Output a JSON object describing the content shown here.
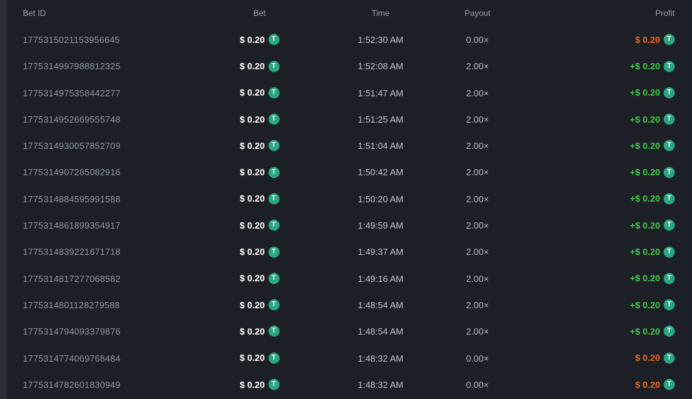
{
  "colors": {
    "table_background": "#1c1f25",
    "page_edge": "#2c2f34",
    "profit_win": "#3fc94a",
    "profit_loss": "#ed6516",
    "tether_green": "#2aa881",
    "bet_amount_text": "#ffffff"
  },
  "icons": {
    "currency": "tether-icon",
    "currency_glyph": "T"
  },
  "table": {
    "columns": [
      {
        "key": "bet_id",
        "label": "Bet ID",
        "align": "left"
      },
      {
        "key": "bet",
        "label": "Bet",
        "align": "center"
      },
      {
        "key": "time",
        "label": "Time",
        "align": "center"
      },
      {
        "key": "payout",
        "label": "Payout",
        "align": "center"
      },
      {
        "key": "profit",
        "label": "Profit",
        "align": "right"
      }
    ],
    "rows": [
      {
        "bet_id": "1775315021153956645",
        "bet": "$ 0.20",
        "time": "1:52:30 AM",
        "payout": "0.00×",
        "profit": "$ 0.20",
        "profit_state": "loss"
      },
      {
        "bet_id": "1775314997988812325",
        "bet": "$ 0.20",
        "time": "1:52:08 AM",
        "payout": "2.00×",
        "profit": "+$ 0.20",
        "profit_state": "win"
      },
      {
        "bet_id": "1775314975358442277",
        "bet": "$ 0.20",
        "time": "1:51:47 AM",
        "payout": "2.00×",
        "profit": "+$ 0.20",
        "profit_state": "win"
      },
      {
        "bet_id": "1775314952669555748",
        "bet": "$ 0.20",
        "time": "1:51:25 AM",
        "payout": "2.00×",
        "profit": "+$ 0.20",
        "profit_state": "win"
      },
      {
        "bet_id": "1775314930057852709",
        "bet": "$ 0.20",
        "time": "1:51:04 AM",
        "payout": "2.00×",
        "profit": "+$ 0.20",
        "profit_state": "win"
      },
      {
        "bet_id": "1775314907285082916",
        "bet": "$ 0.20",
        "time": "1:50:42 AM",
        "payout": "2.00×",
        "profit": "+$ 0.20",
        "profit_state": "win"
      },
      {
        "bet_id": "1775314884595991588",
        "bet": "$ 0.20",
        "time": "1:50:20 AM",
        "payout": "2.00×",
        "profit": "+$ 0.20",
        "profit_state": "win"
      },
      {
        "bet_id": "1775314861899354917",
        "bet": "$ 0.20",
        "time": "1:49:59 AM",
        "payout": "2.00×",
        "profit": "+$ 0.20",
        "profit_state": "win"
      },
      {
        "bet_id": "1775314839221671718",
        "bet": "$ 0.20",
        "time": "1:49:37 AM",
        "payout": "2.00×",
        "profit": "+$ 0.20",
        "profit_state": "win"
      },
      {
        "bet_id": "1775314817277068582",
        "bet": "$ 0.20",
        "time": "1:49:16 AM",
        "payout": "2.00×",
        "profit": "+$ 0.20",
        "profit_state": "win"
      },
      {
        "bet_id": "1775314801128279588",
        "bet": "$ 0.20",
        "time": "1:48:54 AM",
        "payout": "2.00×",
        "profit": "+$ 0.20",
        "profit_state": "win"
      },
      {
        "bet_id": "1775314794093379876",
        "bet": "$ 0.20",
        "time": "1:48:54 AM",
        "payout": "2.00×",
        "profit": "+$ 0.20",
        "profit_state": "win"
      },
      {
        "bet_id": "1775314774069768484",
        "bet": "$ 0.20",
        "time": "1:48:32 AM",
        "payout": "0.00×",
        "profit": "$ 0.20",
        "profit_state": "loss"
      },
      {
        "bet_id": "1775314782601830949",
        "bet": "$ 0.20",
        "time": "1:48:32 AM",
        "payout": "0.00×",
        "profit": "$ 0.20",
        "profit_state": "loss"
      }
    ]
  }
}
